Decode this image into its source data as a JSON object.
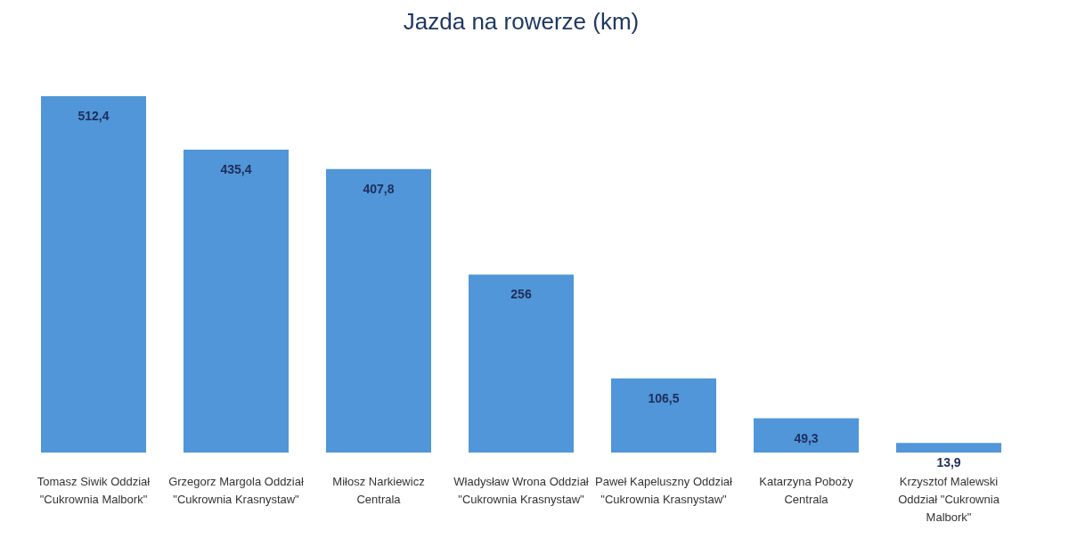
{
  "chart_data": {
    "type": "bar",
    "title": "Jazda na rowerze (km)",
    "categories": [
      "Tomasz Siwik Oddział \"Cukrownia Malbork\"",
      "Grzegorz Margola Oddział \"Cukrownia Krasnystaw\"",
      "Miłosz Narkiewicz Centrala",
      "Władysław Wrona Oddział \"Cukrownia Krasnystaw\"",
      "Paweł Kapeluszny Oddział \"Cukrownia Krasnystaw\"",
      "Katarzyna Poboży Centrala",
      "Krzysztof Malewski Oddział \"Cukrownia Malbork\""
    ],
    "values": [
      512.4,
      435.4,
      407.8,
      256,
      106.5,
      49.3,
      13.9
    ],
    "value_labels": [
      "512,4",
      "435,4",
      "407,8",
      "256",
      "106,5",
      "49,3",
      "13,9"
    ],
    "color": "#5096d8"
  }
}
